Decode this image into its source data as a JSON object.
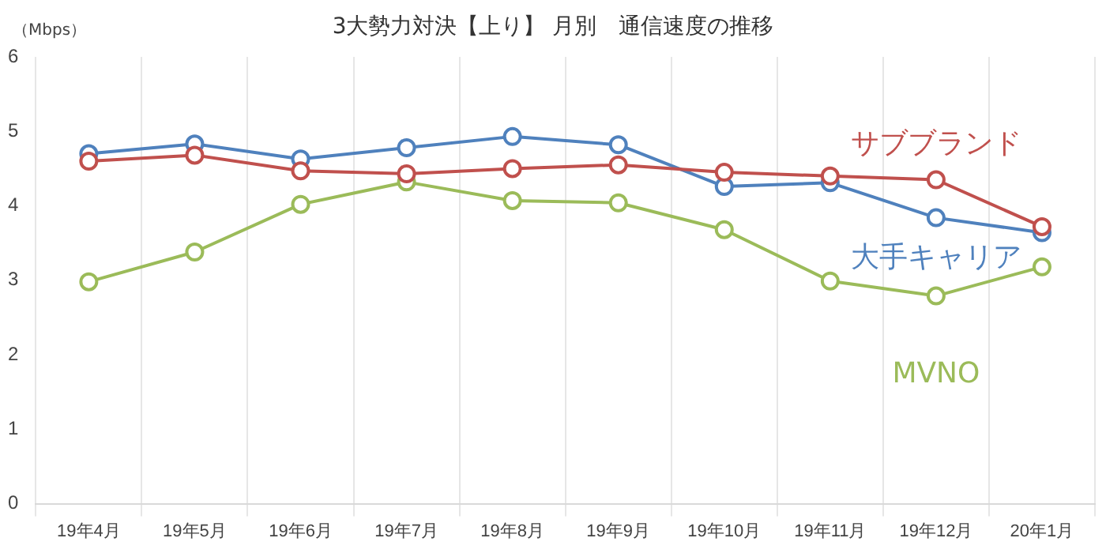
{
  "chart_data": {
    "type": "line",
    "title": "3大勢力対決【上り】 月別　通信速度の推移",
    "ylabel": "（Mbps）",
    "categories": [
      "19年4月",
      "19年5月",
      "19年6月",
      "19年7月",
      "19年8月",
      "19年9月",
      "19年10月",
      "19年11月",
      "19年12月",
      "20年1月"
    ],
    "series": [
      {
        "name": "サブブランド",
        "color": "#c0504d",
        "values": [
          4.6,
          4.68,
          4.47,
          4.43,
          4.5,
          4.55,
          4.45,
          4.4,
          4.35,
          3.72
        ]
      },
      {
        "name": "大手キャリア",
        "color": "#4f81bd",
        "values": [
          4.7,
          4.83,
          4.63,
          4.78,
          4.93,
          4.82,
          4.26,
          4.31,
          3.84,
          3.64
        ]
      },
      {
        "name": "MVNO",
        "color": "#9bbb59",
        "values": [
          2.98,
          3.38,
          4.02,
          4.32,
          4.07,
          4.04,
          3.68,
          2.99,
          2.79,
          3.18
        ]
      }
    ],
    "ylim": [
      0,
      6
    ],
    "yticks": [
      0,
      1,
      2,
      3,
      4,
      5,
      6
    ],
    "grid": "x",
    "legend": false,
    "marker": "circle",
    "line_style": "solid"
  }
}
